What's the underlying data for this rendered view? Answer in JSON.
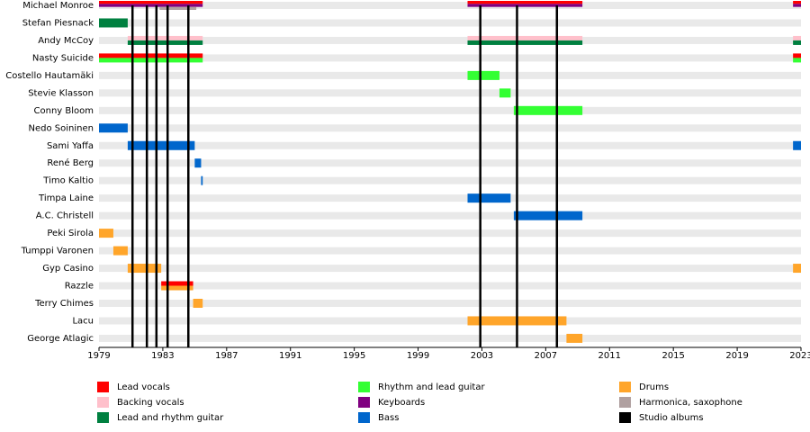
{
  "chart_data": {
    "type": "timeline",
    "categories": [
      "Michael Monroe",
      "Stefan Piesnack",
      "Andy McCoy",
      "Nasty Suicide",
      "Costello Hautamäki",
      "Stevie Klasson",
      "Conny Bloom",
      "Nedo Soininen",
      "Sami Yaffa",
      "René Berg",
      "Timo Kaltio",
      "Timpa Laine",
      "A.C. Christell",
      "Peki Sirola",
      "Tumppi Varonen",
      "Gyp Casino",
      "Razzle",
      "Terry Chimes",
      "Lacu",
      "George Atlagic"
    ],
    "xlim": [
      1979,
      2023
    ],
    "xticks": [
      1979,
      1983,
      1987,
      1991,
      1995,
      1999,
      2003,
      2007,
      2011,
      2015,
      2019,
      2023
    ],
    "series": [
      {
        "name": "Lead vocals",
        "color": "#ff0000",
        "values": [
          [
            [
              1979,
              1985.5
            ],
            [
              2002.1,
              2009.3
            ],
            [
              2022.5,
              2023
            ]
          ],
          [],
          [],
          [
            [
              1979,
              1985.5
            ],
            [
              2022.5,
              2023
            ]
          ],
          [],
          [],
          [],
          [],
          [],
          [],
          [],
          [],
          [],
          [],
          [],
          [],
          [
            [
              1982.9,
              1984.9
            ]
          ],
          [],
          [],
          []
        ]
      },
      {
        "name": "Backing vocals",
        "color": "#ffc0cb",
        "values": [
          [],
          [],
          [
            [
              1980.8,
              1985.5
            ],
            [
              2002.1,
              2009.3
            ],
            [
              2022.5,
              2023
            ]
          ],
          [],
          [],
          [],
          [],
          [],
          [],
          [],
          [],
          [],
          [],
          [],
          [],
          [],
          [],
          [],
          [],
          []
        ]
      },
      {
        "name": "Lead and rhythm guitar",
        "color": "#008040",
        "values": [
          [],
          [
            [
              1979,
              1980.8
            ]
          ],
          [
            [
              1980.8,
              1985.5
            ],
            [
              2002.1,
              2009.3
            ],
            [
              2022.5,
              2023
            ]
          ],
          [],
          [],
          [],
          [],
          [],
          [],
          [],
          [],
          [],
          [],
          [],
          [],
          [],
          [],
          [],
          [],
          []
        ]
      },
      {
        "name": "Rhythm and lead guitar",
        "color": "#33ff33",
        "values": [
          [],
          [],
          [],
          [
            [
              1979,
              1985.5
            ],
            [
              2022.5,
              2023
            ]
          ],
          [
            [
              2002.1,
              2004.1
            ]
          ],
          [
            [
              2004.1,
              2004.8
            ]
          ],
          [
            [
              2005,
              2009.3
            ]
          ],
          [],
          [],
          [],
          [],
          [],
          [],
          [],
          [],
          [],
          [],
          [],
          [],
          []
        ]
      },
      {
        "name": "Keyboards",
        "color": "#800080",
        "values": [
          [
            [
              1979,
              1985.5
            ],
            [
              2002.1,
              2009.3
            ],
            [
              2022.5,
              2023
            ]
          ],
          [],
          [],
          [],
          [],
          [],
          [],
          [],
          [],
          [],
          [],
          [],
          [],
          [],
          [],
          [],
          [],
          [],
          [],
          []
        ]
      },
      {
        "name": "Bass",
        "color": "#0066cc",
        "values": [
          [],
          [],
          [],
          [],
          [],
          [],
          [],
          [
            [
              1979,
              1980.8
            ]
          ],
          [
            [
              1980.8,
              1985
            ],
            [
              2022.5,
              2023
            ]
          ],
          [
            [
              1985,
              1985.4
            ]
          ],
          [
            [
              1985.4,
              1985.5
            ]
          ],
          [
            [
              2002.1,
              2004.8
            ]
          ],
          [
            [
              2005,
              2009.3
            ]
          ],
          [],
          [],
          [],
          [],
          [],
          [],
          []
        ]
      },
      {
        "name": "Drums",
        "color": "#ffa52a",
        "values": [
          [],
          [],
          [],
          [],
          [],
          [],
          [],
          [],
          [],
          [],
          [],
          [],
          [],
          [
            [
              1979,
              1979.9
            ]
          ],
          [
            [
              1979.9,
              1980.8
            ]
          ],
          [
            [
              1980.8,
              1982.9
            ],
            [
              2022.5,
              2023
            ]
          ],
          [
            [
              1982.9,
              1984.9
            ]
          ],
          [
            [
              1984.9,
              1985.5
            ]
          ],
          [
            [
              2002.1,
              2008.3
            ]
          ],
          [
            [
              2008.3,
              2009.3
            ]
          ]
        ]
      },
      {
        "name": "Harmonica, saxophone",
        "color": "#b0a0a0",
        "values": [
          [
            [
              1982.8,
              1985.1
            ]
          ],
          [],
          [],
          [],
          [],
          [],
          [],
          [],
          [],
          [],
          [],
          [],
          [],
          [],
          [],
          [],
          [],
          [],
          [],
          []
        ]
      }
    ],
    "lines": {
      "name": "Studio albums",
      "color": "#000000",
      "values": [
        1981.1,
        1982.0,
        1982.6,
        1983.3,
        1984.6,
        2002.9,
        2005.2,
        2007.7
      ]
    }
  }
}
